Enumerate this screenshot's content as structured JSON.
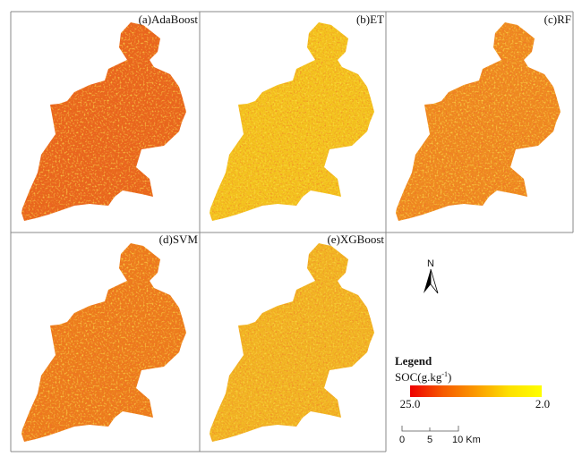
{
  "panels": [
    {
      "title": "(a)AdaBoost",
      "base_color": "#e8661c"
    },
    {
      "title": "(b)ET",
      "base_color": "#f3c21e"
    },
    {
      "title": "(c)RF",
      "base_color": "#ee8a20"
    },
    {
      "title": "(d)SVM",
      "base_color": "#ec7c1c"
    },
    {
      "title": "(e)XGBoost",
      "base_color": "#f1b423"
    }
  ],
  "north_arrow": {
    "label": "N"
  },
  "legend": {
    "title": "Legend",
    "variable": "SOC(g.kg",
    "unit_superscript": "-1",
    "unit_close": ")",
    "max_label": "25.0",
    "min_label": "2.0",
    "colors": [
      "#ee0000",
      "#f65a00",
      "#fb9a00",
      "#fde000",
      "#ffff00"
    ]
  },
  "scale_bar": {
    "labels": [
      "0",
      "5",
      "10 Km"
    ]
  }
}
